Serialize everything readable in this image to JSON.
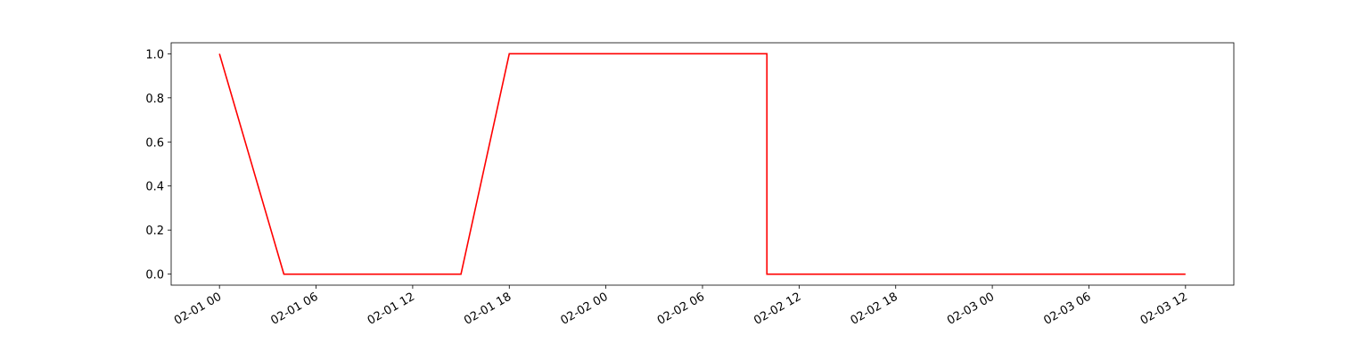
{
  "chart_data": {
    "type": "line",
    "x": [
      "02-01 00",
      "02-01 04",
      "02-01 15",
      "02-01 18",
      "02-02 10",
      "02-02 10",
      "02-03 12"
    ],
    "values": [
      1,
      0,
      0,
      1,
      1,
      0,
      0
    ],
    "color": "#ff0000",
    "xlim": [
      "01-31 21",
      "02-03 15"
    ],
    "xticks": [
      "02-01 00",
      "02-01 06",
      "02-01 12",
      "02-01 18",
      "02-02 00",
      "02-02 06",
      "02-02 12",
      "02-02 18",
      "02-03 00",
      "02-03 06",
      "02-03 12"
    ],
    "ylim": [
      -0.05,
      1.05
    ],
    "yticks": [
      {
        "value": 0,
        "label": "0.0"
      },
      {
        "value": 0.2,
        "label": "0.2"
      },
      {
        "value": 0.4,
        "label": "0.4"
      },
      {
        "value": 0.6,
        "label": "0.6"
      },
      {
        "value": 0.8,
        "label": "0.8"
      },
      {
        "value": 1,
        "label": "1.0"
      }
    ],
    "grid": false
  }
}
